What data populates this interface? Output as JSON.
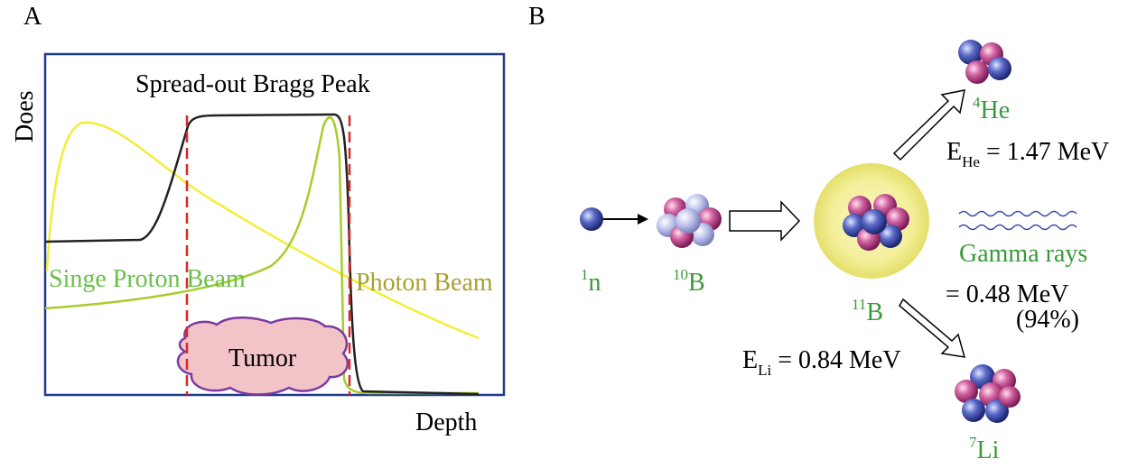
{
  "panel_a": {
    "label": "A",
    "y_label": "Does",
    "x_label": "Depth",
    "title": "Spread-out Bragg Peak",
    "proton_label": "Singe Proton Beam",
    "photon_label": "Photon Beam",
    "tumor": "Tumor"
  },
  "panel_b": {
    "label": "B",
    "neutron": {
      "mass": "1",
      "symbol": "n"
    },
    "boron10": {
      "mass": "10",
      "symbol": "B"
    },
    "boron11": {
      "mass": "11",
      "symbol": "B"
    },
    "helium": {
      "mass": "4",
      "symbol": "He",
      "energy": {
        "symbol": "E",
        "sub": "He",
        "text": " = 1.47 MeV"
      }
    },
    "gamma": {
      "label": "Gamma rays",
      "energy": "= 0.48 MeV",
      "branch": "(94%)"
    },
    "lithium": {
      "mass": "7",
      "symbol": "Li",
      "energy": {
        "symbol": "E",
        "sub": "Li",
        "text": " = 0.84 MeV"
      }
    }
  }
}
